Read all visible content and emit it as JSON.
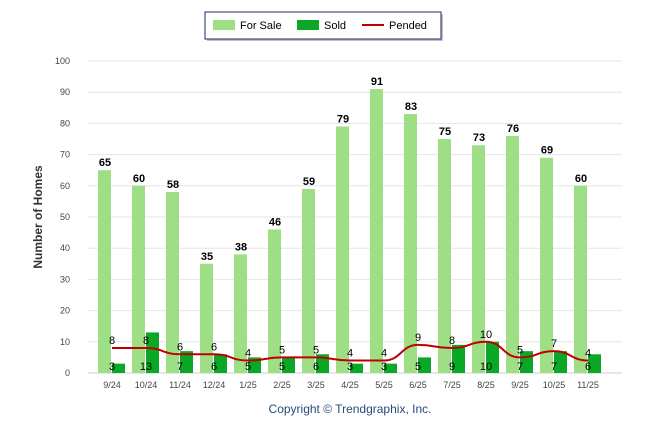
{
  "chart_data": {
    "type": "bar",
    "title": "",
    "xlabel": "",
    "ylabel": "Number of Homes",
    "ylim": [
      0,
      100
    ],
    "yticks": [
      0,
      10,
      20,
      30,
      40,
      50,
      60,
      70,
      80,
      90,
      100
    ],
    "grid": true,
    "legend_position": "top-center",
    "categories": [
      "9/24",
      "10/24",
      "11/24",
      "12/24",
      "1/25",
      "2/25",
      "3/25",
      "4/25",
      "5/25",
      "6/25",
      "7/25",
      "8/25",
      "9/25",
      "10/25",
      "11/25"
    ],
    "series": [
      {
        "name": "For Sale",
        "type": "bar",
        "color": "#9edf86",
        "values": [
          65,
          60,
          58,
          35,
          38,
          46,
          59,
          79,
          91,
          83,
          75,
          73,
          76,
          69,
          60
        ]
      },
      {
        "name": "Sold",
        "type": "bar",
        "color": "#0aa826",
        "values": [
          3,
          13,
          7,
          6,
          5,
          5,
          6,
          3,
          3,
          5,
          9,
          10,
          7,
          7,
          6
        ]
      },
      {
        "name": "Pended",
        "type": "line",
        "color": "#c00000",
        "values": [
          8,
          8,
          6,
          6,
          4,
          5,
          5,
          4,
          4,
          9,
          8,
          10,
          5,
          7,
          4
        ]
      }
    ]
  },
  "footer": {
    "copyright": "Copyright © Trendgraphix, Inc."
  }
}
